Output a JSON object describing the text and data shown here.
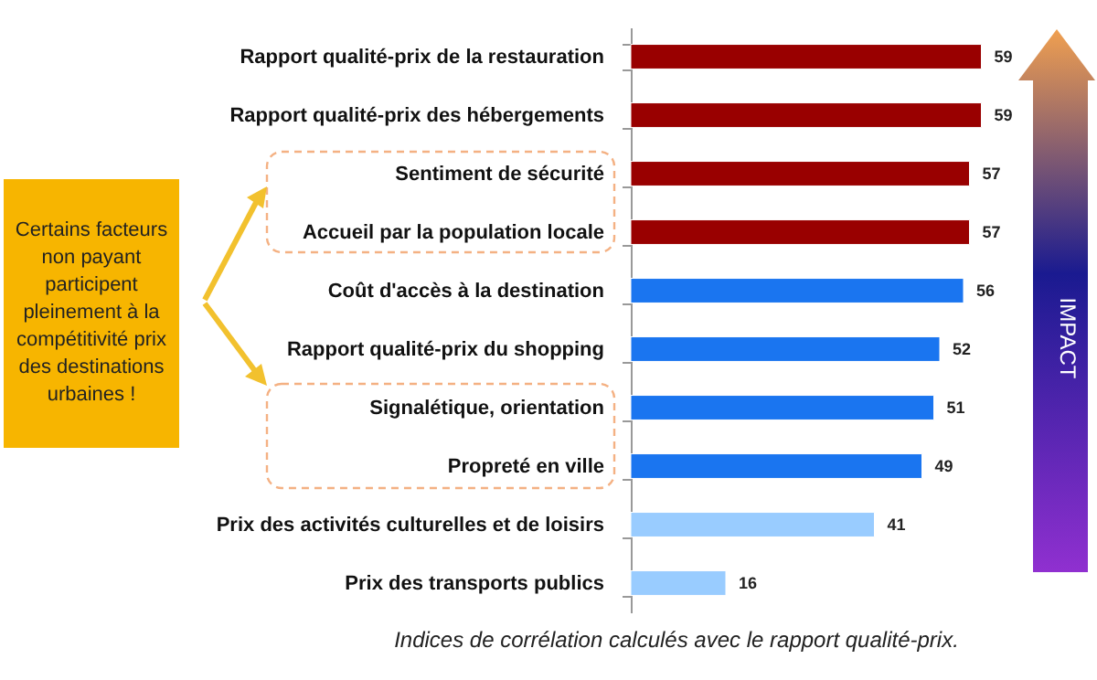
{
  "chart_data": {
    "type": "bar",
    "orientation": "horizontal",
    "data_labels": true,
    "categories": [
      "Rapport qualité-prix de la restauration",
      "Rapport qualité-prix des hébergements",
      "Sentiment de sécurité",
      "Accueil par la population locale",
      "Coût d'accès à la destination",
      "Rapport qualité-prix du shopping",
      "Signalétique, orientation",
      "Propreté en ville",
      "Prix des activités culturelles et de loisirs",
      "Prix des transports publics"
    ],
    "values": [
      59,
      59,
      57,
      57,
      56,
      52,
      51,
      49,
      41,
      16
    ],
    "colors": [
      "#990000",
      "#990000",
      "#990000",
      "#990000",
      "#1a75f0",
      "#1a75f0",
      "#1a75f0",
      "#1a75f0",
      "#99ccff",
      "#99ccff"
    ],
    "annotations": [
      "Certains facteurs non payant participent pleinement à la compétitivité prix des destinations urbaines !",
      "IMPACT",
      "Indices de corrélation calculés avec le rapport qualité-prix."
    ]
  }
}
